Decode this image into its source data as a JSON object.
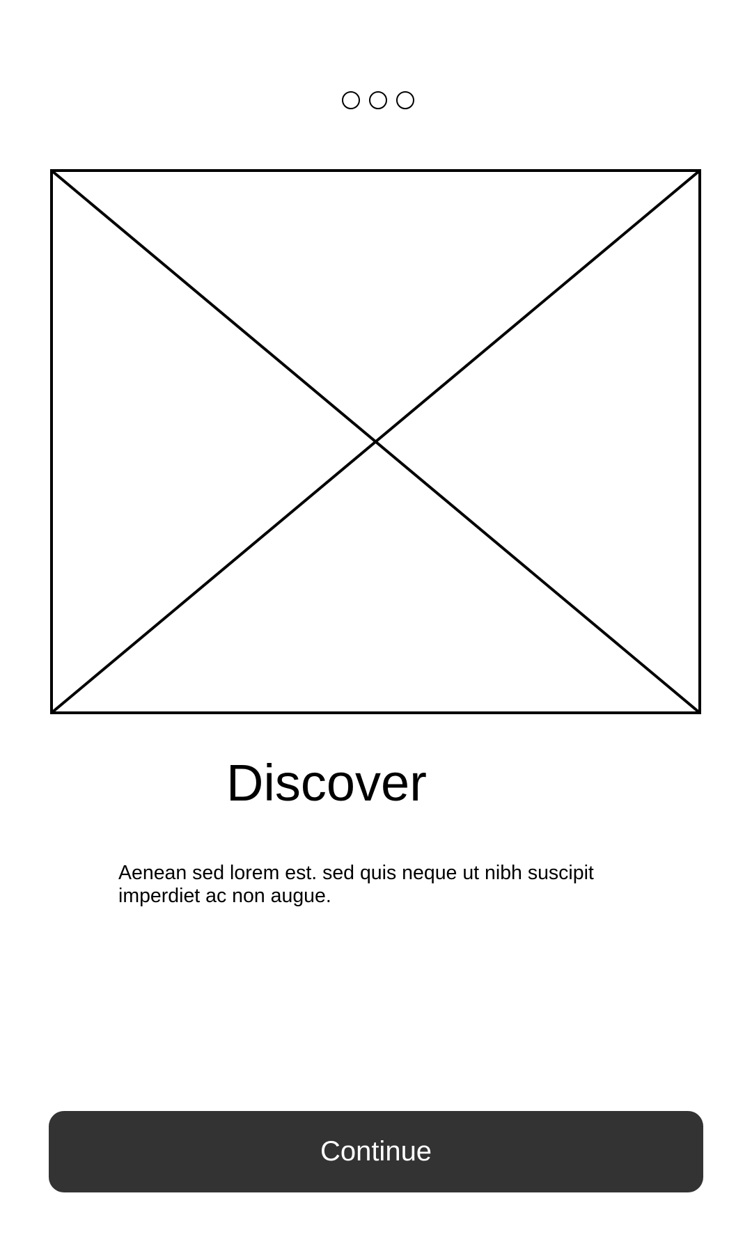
{
  "pager": {
    "total": 3,
    "active_index": null
  },
  "image_placeholder": {
    "icon": "image-placeholder-icon"
  },
  "content": {
    "title": "Discover",
    "description": "Aenean sed lorem est. sed quis neque ut nibh suscipit imperdiet ac non augue."
  },
  "actions": {
    "continue_label": "Continue"
  },
  "colors": {
    "button_bg": "#333333",
    "button_text": "#ffffff",
    "stroke": "#000000",
    "background": "#ffffff"
  }
}
